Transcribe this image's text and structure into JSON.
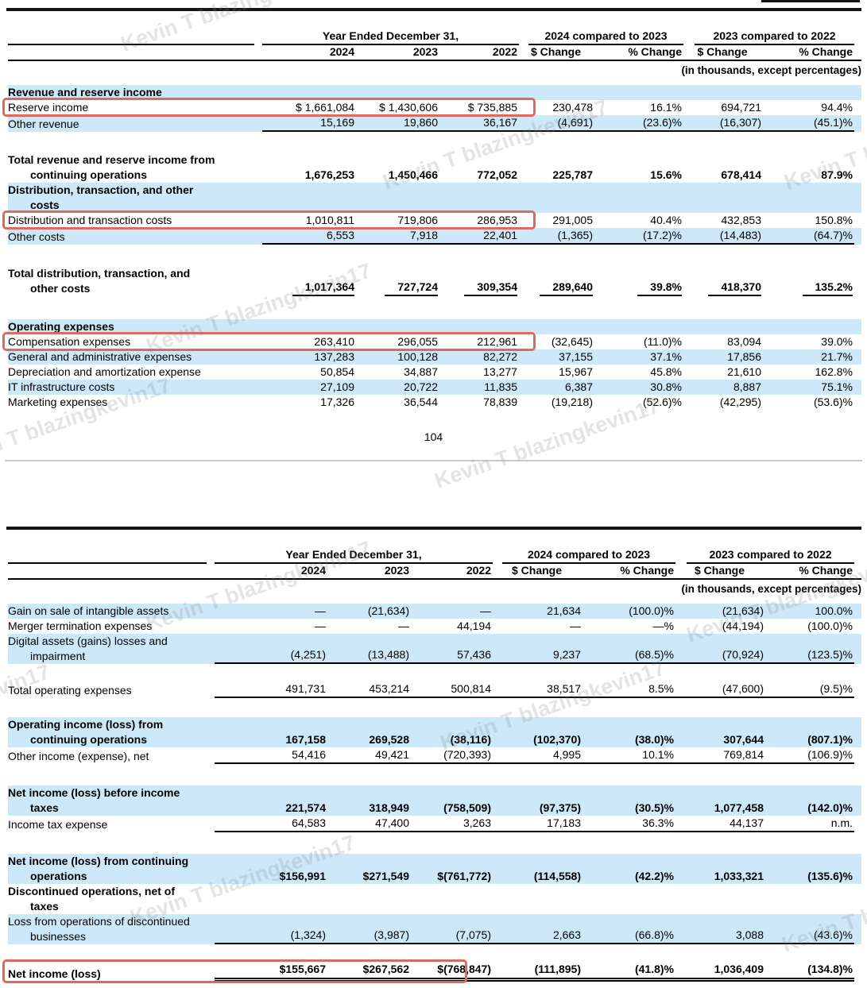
{
  "page_number": "104",
  "watermark_text": "Kevin T blazingkevin17",
  "colors": {
    "row_highlight": "#cce8f9",
    "annotation_red": "#dd6a5e"
  },
  "tables": [
    {
      "headers": {
        "group_years": "Year Ended December 31,",
        "group_change1": "2024 compared to 2023",
        "group_change2": "2023 compared to 2022",
        "years": [
          "2024",
          "2023",
          "2022"
        ],
        "change_cols": [
          "$ Change",
          "% Change",
          "$ Change",
          "% Change"
        ],
        "note": "(in thousands, except percentages)"
      },
      "rows": [
        {
          "label": [
            "Revenue and reserve income"
          ],
          "cells": [],
          "bold": true,
          "shade": true
        },
        {
          "label": [
            "Reserve income"
          ],
          "cells": [
            "$ 1,661,084",
            "$ 1,430,606",
            "$ 735,885",
            "230,478",
            "16.1%",
            "694,721",
            "94.4%"
          ],
          "redbox": "wide"
        },
        {
          "label": [
            "Other revenue"
          ],
          "cells": [
            "15,169",
            "19,860",
            "36,167",
            "(4,691)",
            "(23.6)%",
            "(16,307)",
            "(45.1)%"
          ],
          "shade": true,
          "rule": "cont",
          "gap_after": 26
        },
        {
          "label": [
            "Total revenue and reserve income from",
            "continuing operations"
          ],
          "cells": [
            "1,676,253",
            "1,450,466",
            "772,052",
            "225,787",
            "15.6%",
            "678,414",
            "87.9%"
          ],
          "bold": true
        },
        {
          "label": [
            "Distribution, transaction, and other",
            "costs"
          ],
          "cells": [],
          "bold": true,
          "shade": true
        },
        {
          "label": [
            "Distribution and transaction costs"
          ],
          "cells": [
            "1,010,811",
            "719,806",
            "286,953",
            "291,005",
            "40.4%",
            "432,853",
            "150.8%"
          ],
          "redbox": "wide"
        },
        {
          "label": [
            "Other costs"
          ],
          "cells": [
            "6,553",
            "7,918",
            "22,401",
            "(1,365)",
            "(17.2)%",
            "(14,483)",
            "(64.7)%"
          ],
          "shade": true,
          "rule": "cont",
          "gap_after": 27
        },
        {
          "label": [
            "Total distribution, transaction, and",
            "other costs"
          ],
          "cells": [
            "1,017,364",
            "727,724",
            "309,354",
            "289,640",
            "39.8%",
            "418,370",
            "135.2%"
          ],
          "bold": true,
          "rule": "each",
          "gap_after": 29
        },
        {
          "label": [
            "Operating expenses"
          ],
          "cells": [],
          "bold": true,
          "shade": true
        },
        {
          "label": [
            "Compensation expenses"
          ],
          "cells": [
            "263,410",
            "296,055",
            "212,961",
            "(32,645)",
            "(11.0)%",
            "83,094",
            "39.0%"
          ],
          "redbox": "wide"
        },
        {
          "label": [
            "General and administrative expenses"
          ],
          "cells": [
            "137,283",
            "100,128",
            "82,272",
            "37,155",
            "37.1%",
            "17,856",
            "21.7%"
          ],
          "shade": true
        },
        {
          "label": [
            "Depreciation and amortization expense"
          ],
          "cells": [
            "50,854",
            "34,887",
            "13,277",
            "15,967",
            "45.8%",
            "21,610",
            "162.8%"
          ]
        },
        {
          "label": [
            "IT infrastructure costs"
          ],
          "cells": [
            "27,109",
            "20,722",
            "11,835",
            "6,387",
            "30.8%",
            "8,887",
            "75.1%"
          ],
          "shade": true
        },
        {
          "label": [
            "Marketing expenses"
          ],
          "cells": [
            "17,326",
            "36,544",
            "78,839",
            "(19,218)",
            "(52.6)%",
            "(42,295)",
            "(53.6)%"
          ]
        }
      ]
    },
    {
      "headers": {
        "group_years": "Year Ended December 31,",
        "group_change1": "2024 compared to 2023",
        "group_change2": "2023 compared to 2022",
        "years": [
          "2024",
          "2023",
          "2022"
        ],
        "change_cols": [
          "$ Change",
          "% Change",
          "$ Change",
          "% Change"
        ],
        "note": "(in thousands, except percentages)"
      },
      "rows": [
        {
          "label": [
            "Gain on sale of intangible assets"
          ],
          "cells": [
            "—",
            "(21,634)",
            "—",
            "21,634",
            "(100.0)%",
            "(21,634)",
            "100.0%"
          ],
          "shade": true
        },
        {
          "label": [
            "Merger termination expenses"
          ],
          "cells": [
            "—",
            "—",
            "44,194",
            "—",
            "—%",
            "(44,194)",
            "(100.0)%"
          ]
        },
        {
          "label": [
            "Digital assets (gains) losses and",
            "impairment"
          ],
          "cells": [
            "(4,251)",
            "(13,488)",
            "57,436",
            "9,237",
            "(68.5)%",
            "(70,924)",
            "(123.5)%"
          ],
          "shade": true,
          "rule": "cont",
          "gap_after": 22
        },
        {
          "label": [
            "Total operating expenses"
          ],
          "cells": [
            "491,731",
            "453,214",
            "500,814",
            "38,517",
            "8.5%",
            "(47,600)",
            "(9.5)%"
          ],
          "rule": "cont",
          "gap_after": 24
        },
        {
          "label": [
            "Operating income (loss) from",
            "continuing operations"
          ],
          "cells": [
            "167,158",
            "269,528",
            "(38,116)",
            "(102,370)",
            "(38.0)%",
            "307,644",
            "(807.1)%"
          ],
          "bold": true,
          "shade": true
        },
        {
          "label": [
            "Other income (expense), net"
          ],
          "cells": [
            "54,416",
            "49,421",
            "(720,393)",
            "4,995",
            "10.1%",
            "769,814",
            "(106.9)%"
          ],
          "rule": "cont",
          "gap_after": 27
        },
        {
          "label": [
            "Net income (loss) before income",
            "taxes"
          ],
          "cells": [
            "221,574",
            "318,949",
            "(758,509)",
            "(97,375)",
            "(30.5)%",
            "1,077,458",
            "(142.0)%"
          ],
          "bold": true,
          "shade": true
        },
        {
          "label": [
            "Income tax expense"
          ],
          "cells": [
            "64,583",
            "47,400",
            "3,263",
            "17,183",
            "36.3%",
            "44,137",
            "n.m."
          ],
          "rule": "cont",
          "gap_after": 27
        },
        {
          "label": [
            "Net income (loss) from continuing",
            "operations"
          ],
          "cells": [
            "$156,991",
            "$271,549",
            "$(761,772)",
            "(114,558)",
            "(42.2)%",
            "1,033,321",
            "(135.6)%"
          ],
          "bold": true,
          "shade": true
        },
        {
          "label": [
            "Discontinued operations, net of",
            "taxes"
          ],
          "cells": [],
          "bold": true
        },
        {
          "label": [
            "Loss from operations of discontinued",
            "businesses"
          ],
          "cells": [
            "(1,324)",
            "(3,987)",
            "(7,075)",
            "2,663",
            "(66.8)%",
            "3,088",
            "(43.6)%"
          ],
          "shade": true,
          "rule": "cont",
          "gap_after": 22
        },
        {
          "label": [
            "Net income (loss)"
          ],
          "cells": [
            "$155,667",
            "$267,562",
            "$(768,847)",
            "(111,895)",
            "(41.8)%",
            "1,036,409",
            "(134.8)%"
          ],
          "bold": true,
          "rule": "double",
          "redbox": "narrow"
        }
      ]
    }
  ]
}
